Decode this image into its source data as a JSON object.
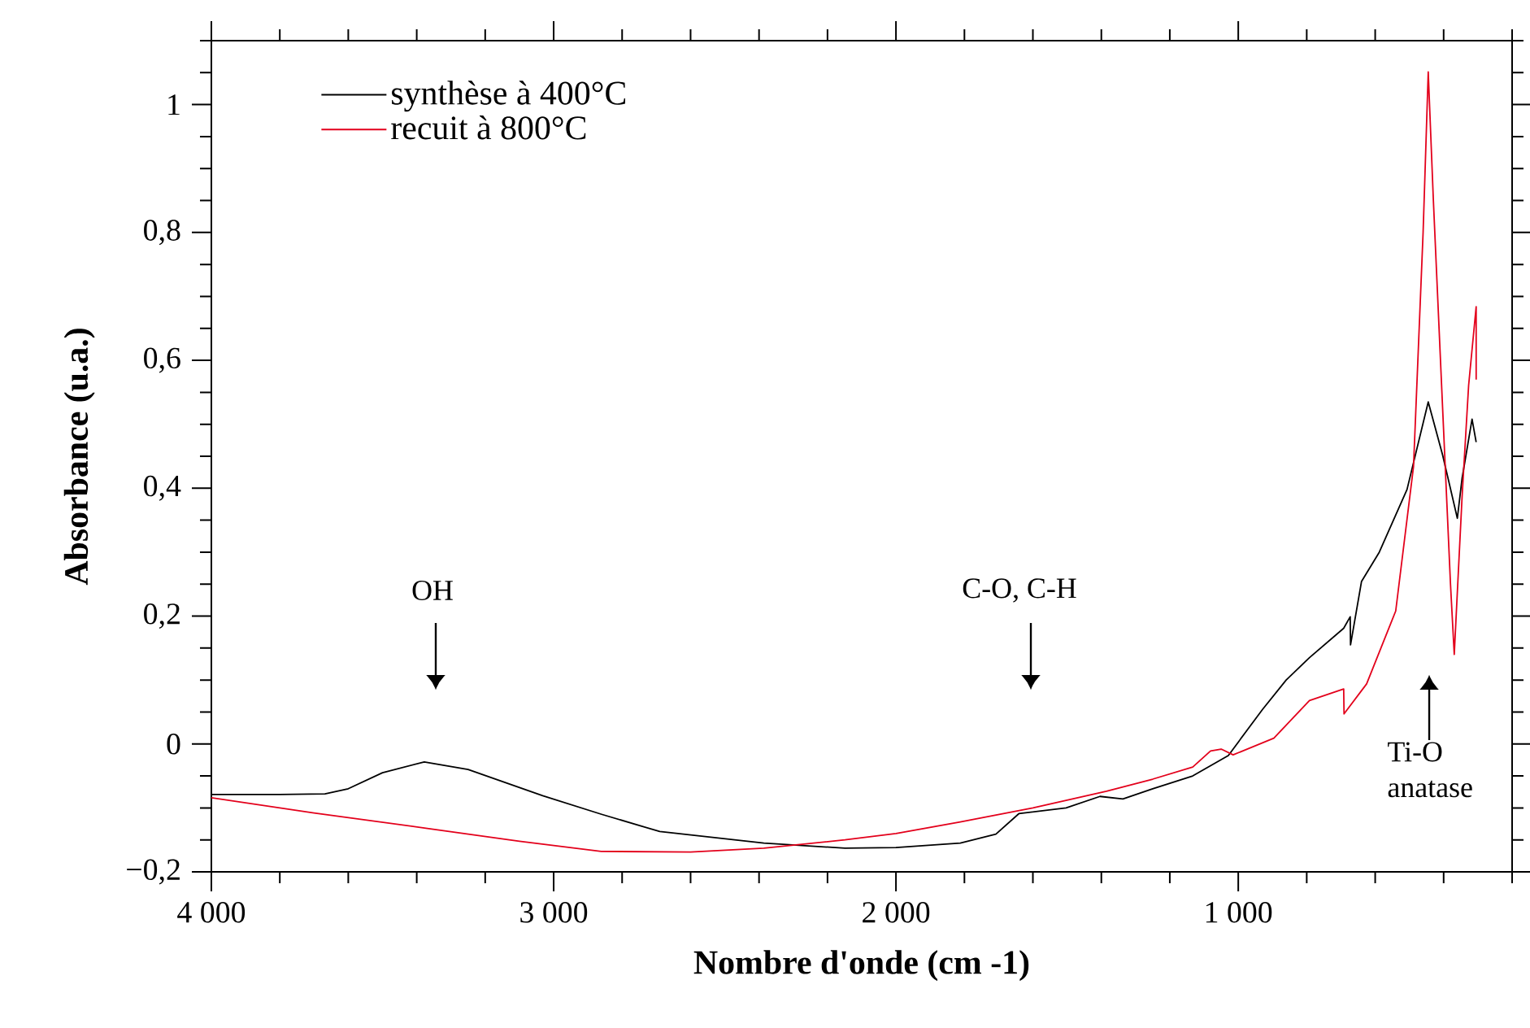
{
  "chart_data": {
    "type": "line",
    "xlabel": "Nombre d'onde (cm -1)",
    "ylabel": "Absorbance (u.a.)",
    "xlim": [
      4000,
      200
    ],
    "ylim": [
      -0.2,
      1.1
    ],
    "xticks": [
      {
        "value": 4000,
        "label": "4 000"
      },
      {
        "value": 3000,
        "label": "3 000"
      },
      {
        "value": 2000,
        "label": "2 000"
      },
      {
        "value": 1000,
        "label": "1 000"
      }
    ],
    "yticks": [
      {
        "value": -0.2,
        "label": "−0,2"
      },
      0,
      {
        "value": 0.2,
        "label": "0,2"
      },
      {
        "value": 0.4,
        "label": "0,4"
      },
      {
        "value": 0.6,
        "label": "0,6"
      },
      {
        "value": 0.8,
        "label": "0,8"
      },
      1
    ],
    "legend": "top left",
    "grid": false,
    "marker": "none",
    "line_style": "solid",
    "series": [
      {
        "name": "synthèse à 400°C",
        "color": "#000000",
        "x": [
          4000,
          3800,
          3668,
          3600,
          3500,
          3378,
          3250,
          3032,
          2860,
          2690,
          2386,
          2149,
          2000,
          1812,
          1708,
          1641,
          1503,
          1404,
          1337,
          1250,
          1133,
          1029,
          929,
          860,
          792,
          692,
          673,
          672,
          640,
          588,
          507,
          445,
          403,
          360,
          346,
          317,
          305
        ],
        "values": [
          -0.079,
          -0.079,
          -0.078,
          -0.07,
          -0.045,
          -0.028,
          -0.04,
          -0.081,
          -0.11,
          -0.137,
          -0.155,
          -0.163,
          -0.162,
          -0.155,
          -0.141,
          -0.109,
          -0.1,
          -0.082,
          -0.086,
          -0.07,
          -0.05,
          -0.018,
          0.054,
          0.1,
          0.135,
          0.181,
          0.199,
          0.155,
          0.254,
          0.3,
          0.398,
          0.535,
          0.452,
          0.353,
          0.416,
          0.508,
          0.472
        ]
      },
      {
        "name": "recuit à 800°C",
        "color": "#e3001b",
        "x": [
          4000,
          3700,
          3369,
          3100,
          2861,
          2600,
          2386,
          2149,
          2000,
          1812,
          1600,
          1385,
          1250,
          1133,
          1081,
          1050,
          1015,
          896,
          792,
          692,
          691,
          625,
          540,
          488,
          460,
          445,
          430,
          403,
          380,
          369,
          346,
          327,
          305,
          305
        ],
        "values": [
          -0.084,
          -0.108,
          -0.132,
          -0.152,
          -0.168,
          -0.169,
          -0.163,
          -0.15,
          -0.14,
          -0.122,
          -0.1,
          -0.074,
          -0.055,
          -0.036,
          -0.011,
          -0.008,
          -0.017,
          0.009,
          0.068,
          0.086,
          0.047,
          0.094,
          0.208,
          0.434,
          0.8,
          1.051,
          0.85,
          0.525,
          0.25,
          0.14,
          0.388,
          0.561,
          0.684,
          0.57
        ]
      }
    ],
    "annotations": [
      "OH",
      "C-O, C-H",
      "Ti-O anatase"
    ]
  }
}
